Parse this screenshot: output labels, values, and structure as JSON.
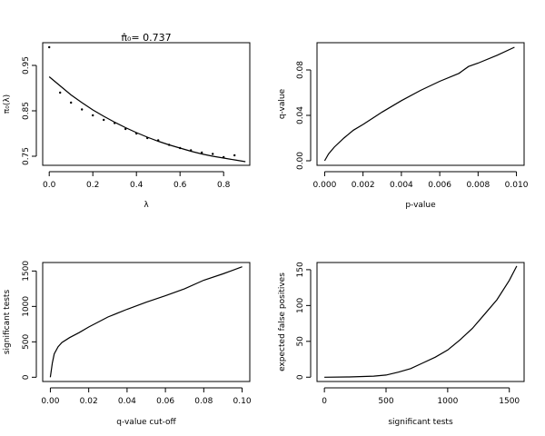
{
  "chart_data": [
    {
      "type": "scatter",
      "title_prefix": "π̂₀",
      "title": "= 0.737",
      "xlabel": "λ",
      "ylabel": "π₀(λ)",
      "xlim": [
        -0.03,
        0.92
      ],
      "ylim": [
        0.73,
        1.0
      ],
      "xticks": [
        0.0,
        0.2,
        0.4,
        0.6,
        0.8
      ],
      "xtick_labels": [
        "0.0",
        "0.2",
        "0.4",
        "0.6",
        "0.8"
      ],
      "yticks": [
        0.75,
        0.85,
        0.95
      ],
      "ytick_labels": [
        "0.75",
        "0.85",
        "0.95"
      ],
      "points": {
        "x": [
          0.0,
          0.05,
          0.1,
          0.15,
          0.2,
          0.25,
          0.3,
          0.35,
          0.4,
          0.45,
          0.5,
          0.55,
          0.6,
          0.65,
          0.7,
          0.75,
          0.8,
          0.85
        ],
        "y": [
          0.99,
          0.89,
          0.868,
          0.853,
          0.84,
          0.83,
          0.823,
          0.81,
          0.8,
          0.79,
          0.785,
          0.775,
          0.768,
          0.763,
          0.758,
          0.755,
          0.748,
          0.752
        ]
      },
      "fit": {
        "x": [
          0.0,
          0.05,
          0.1,
          0.15,
          0.2,
          0.25,
          0.3,
          0.35,
          0.4,
          0.45,
          0.5,
          0.55,
          0.6,
          0.65,
          0.7,
          0.75,
          0.8,
          0.85,
          0.9
        ],
        "y": [
          0.925,
          0.905,
          0.885,
          0.868,
          0.852,
          0.838,
          0.825,
          0.813,
          0.802,
          0.792,
          0.783,
          0.775,
          0.768,
          0.761,
          0.755,
          0.75,
          0.746,
          0.742,
          0.738
        ]
      }
    },
    {
      "type": "line",
      "xlabel": "p-value",
      "ylabel": "q-value",
      "xlim": [
        -0.0004,
        0.0104
      ],
      "ylim": [
        -0.004,
        0.104
      ],
      "xticks": [
        0.0,
        0.002,
        0.004,
        0.006,
        0.008,
        0.01
      ],
      "xtick_labels": [
        "0.000",
        "0.002",
        "0.004",
        "0.006",
        "0.008",
        "0.010"
      ],
      "yticks": [
        0.0,
        0.04,
        0.08
      ],
      "ytick_labels": [
        "0.00",
        "0.04",
        "0.08"
      ],
      "x": [
        0.0,
        0.0002,
        0.0005,
        0.001,
        0.0015,
        0.002,
        0.003,
        0.004,
        0.005,
        0.006,
        0.007,
        0.0075,
        0.008,
        0.009,
        0.0099
      ],
      "y": [
        0.0,
        0.006,
        0.012,
        0.02,
        0.027,
        0.032,
        0.043,
        0.053,
        0.062,
        0.07,
        0.077,
        0.083,
        0.086,
        0.093,
        0.1
      ]
    },
    {
      "type": "line",
      "xlabel": "q-value cut-off",
      "ylabel": "significant tests",
      "xlim": [
        -0.004,
        0.104
      ],
      "ylim": [
        -60,
        1620
      ],
      "xticks": [
        0.0,
        0.02,
        0.04,
        0.06,
        0.08,
        0.1
      ],
      "xtick_labels": [
        "0.00",
        "0.02",
        "0.04",
        "0.06",
        "0.08",
        "0.10"
      ],
      "yticks": [
        0,
        500,
        1000,
        1500
      ],
      "ytick_labels": [
        "0",
        "500",
        "1000",
        "1500"
      ],
      "x": [
        0.0,
        0.001,
        0.002,
        0.004,
        0.006,
        0.01,
        0.015,
        0.02,
        0.03,
        0.04,
        0.05,
        0.06,
        0.07,
        0.08,
        0.09,
        0.1
      ],
      "y": [
        0,
        200,
        330,
        430,
        490,
        560,
        630,
        710,
        850,
        960,
        1060,
        1150,
        1250,
        1370,
        1460,
        1560
      ]
    },
    {
      "type": "line",
      "xlabel": "significant tests",
      "ylabel": "expected false positives",
      "xlim": [
        -60,
        1620
      ],
      "ylim": [
        -6,
        160
      ],
      "xticks": [
        0,
        500,
        1000,
        1500
      ],
      "xtick_labels": [
        "0",
        "500",
        "1000",
        "1500"
      ],
      "yticks": [
        0,
        50,
        100,
        150
      ],
      "ytick_labels": [
        "0",
        "50",
        "100",
        "150"
      ],
      "x": [
        0,
        200,
        400,
        500,
        600,
        700,
        800,
        900,
        1000,
        1100,
        1200,
        1300,
        1400,
        1500,
        1560
      ],
      "y": [
        0,
        0.3,
        1.5,
        3,
        7,
        12,
        20,
        28,
        38,
        52,
        68,
        88,
        108,
        135,
        155
      ]
    }
  ]
}
